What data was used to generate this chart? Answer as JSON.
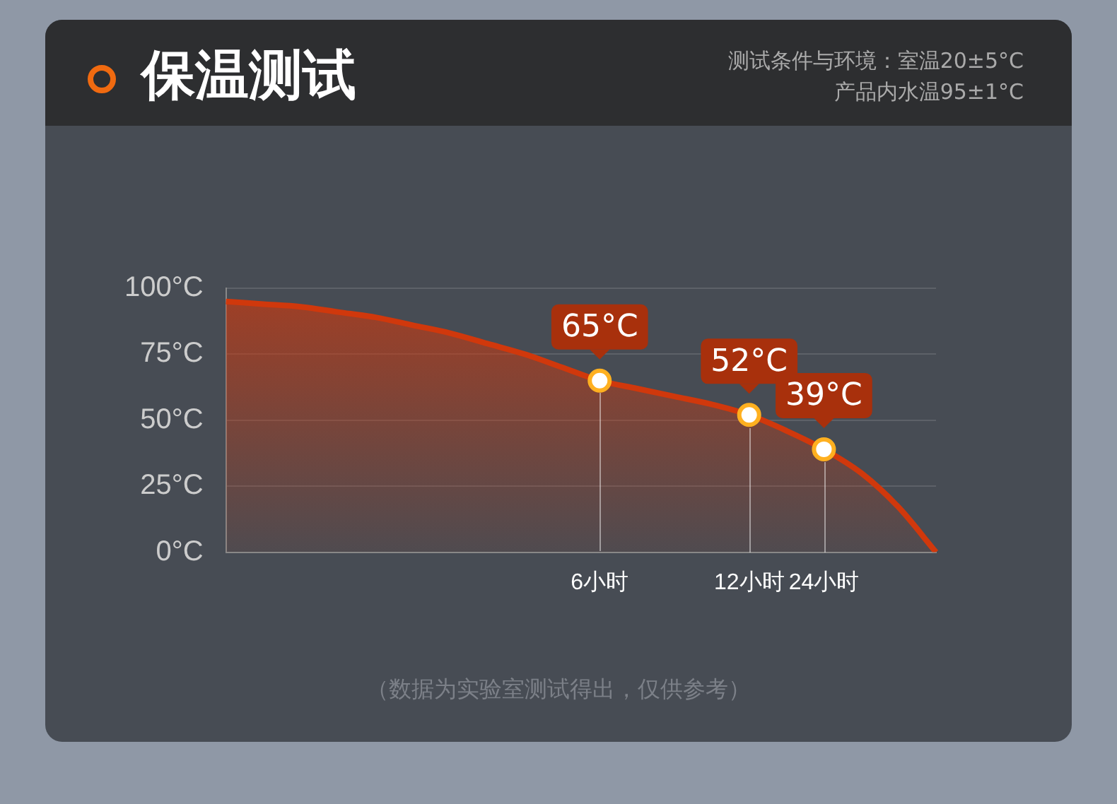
{
  "chart_data": {
    "type": "area",
    "title": "保温测试",
    "subtitle": "测试条件与环境：室温20±5°C\n产品内水温95±1°C",
    "categories": [
      null,
      null,
      null,
      null,
      null,
      null,
      null,
      null,
      null,
      null,
      "6小时",
      null,
      null,
      null,
      "12小时",
      null,
      "24小时",
      null,
      null,
      null
    ],
    "series": [
      {
        "color": "#d0380c",
        "marker": "none",
        "values": [
          95,
          94,
          93,
          91,
          89,
          86,
          83,
          79,
          75,
          70,
          65,
          62,
          59,
          56,
          52,
          46,
          39,
          30,
          17,
          0
        ]
      },
      {
        "type": "scatter",
        "marker": "circle",
        "color": "#ffb020",
        "x": [
          "6小时",
          "12小时",
          "24小时"
        ],
        "values": [
          65,
          52,
          39
        ],
        "value_labels": [
          "65°C",
          "52°C",
          "39°C"
        ]
      }
    ],
    "ylim": [
      0,
      100
    ],
    "yticks": [
      {
        "value": 0,
        "label": "0°C"
      },
      {
        "value": 25,
        "label": "25°C"
      },
      {
        "value": 50,
        "label": "50°C"
      },
      {
        "value": 75,
        "label": "75°C"
      },
      {
        "value": 100,
        "label": "100°C"
      }
    ],
    "grid": "y",
    "legend": false,
    "annotations": [
      "（数据为实验室测试得出，仅供参考）"
    ]
  }
}
